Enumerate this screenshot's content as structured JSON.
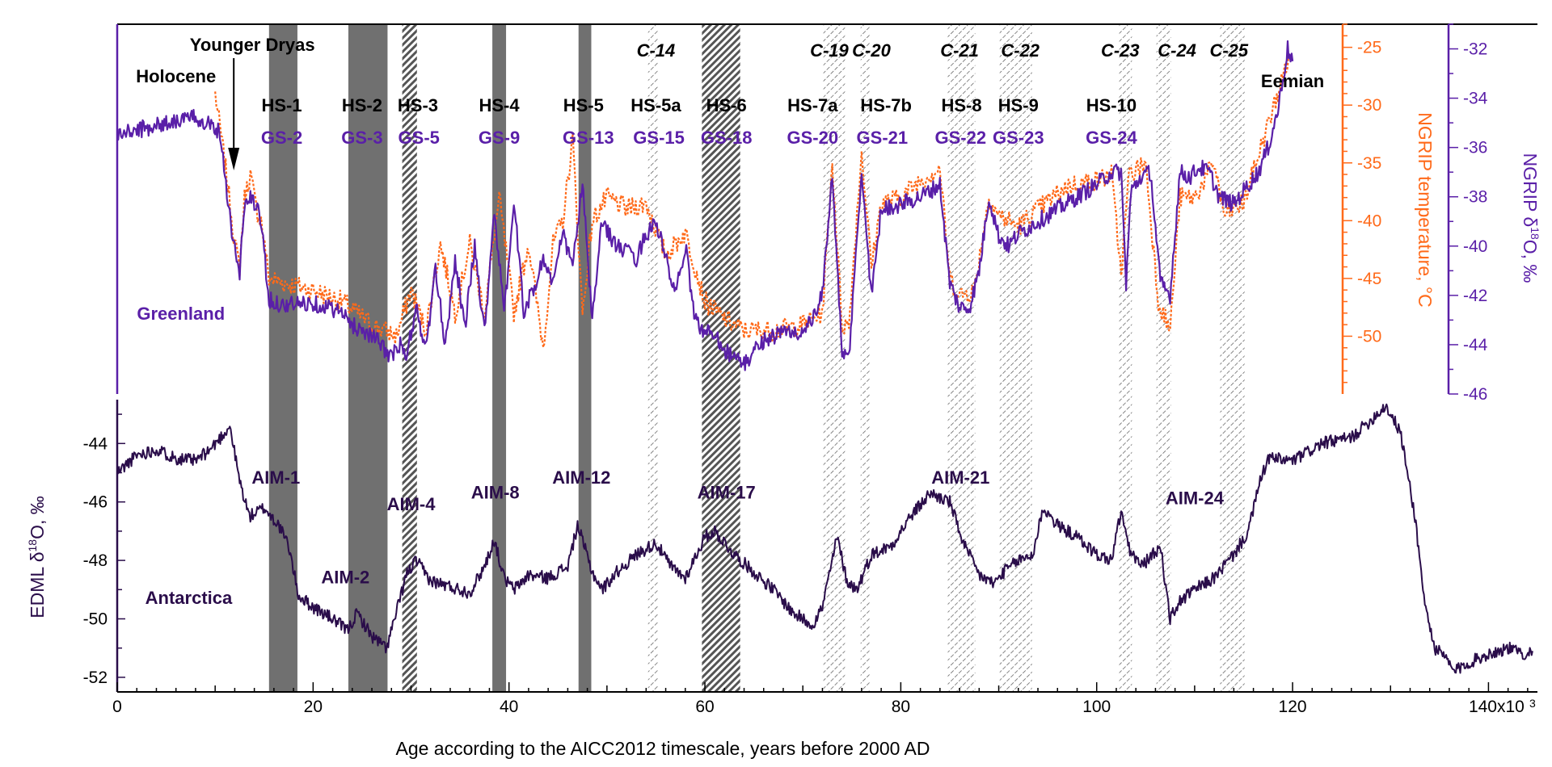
{
  "colors": {
    "greenland_d18o": "#5a1fa8",
    "ngrip_temp": "#ff6a1a",
    "edml": "#2a0d4a",
    "stadial_solid": "#707070",
    "stadial_hatch": "#555555",
    "axis_black": "#000000"
  },
  "chart_data": {
    "type": "line",
    "x_axis": {
      "label": "Age according to the AICC2012 timescale, years before 2000 AD",
      "range": [
        0,
        145000
      ],
      "ticks": [
        0,
        20000,
        40000,
        60000,
        80000,
        100000,
        120000,
        140000
      ],
      "tick_labels": [
        "0",
        "20",
        "40",
        "60",
        "80",
        "100",
        "120",
        "140x10"
      ],
      "multiplier_exponent": "3"
    },
    "axes": {
      "ngrip_d18o": {
        "label": "NGRIP δ¹⁸O, ‰",
        "label_parts": [
          "NGRIP δ",
          "18",
          "O, ‰"
        ],
        "range": [
          -46,
          -31
        ],
        "ticks": [
          -32,
          -34,
          -36,
          -38,
          -40,
          -42,
          -44,
          -46
        ],
        "side": "right-outer"
      },
      "ngrip_temp": {
        "label": "NGRIP temperature, °C",
        "range": [
          -55,
          -23
        ],
        "ticks": [
          -25,
          -30,
          -35,
          -40,
          -45,
          -50
        ],
        "side": "right-inner"
      },
      "edml_d18o": {
        "label": "EDML δ¹⁸O, ‰",
        "label_parts": [
          "EDML δ",
          "18",
          "O, ‰"
        ],
        "range": [
          -52.5,
          -42.5
        ],
        "ticks": [
          -44,
          -46,
          -48,
          -50,
          -52
        ],
        "side": "left"
      }
    },
    "series": [
      {
        "name": "NGRIP δ18O",
        "axis": "ngrip_d18o",
        "x": [
          0,
          2000,
          4000,
          6000,
          8000,
          9500,
          10500,
          11700,
          12500,
          12900,
          13500,
          14200,
          14700,
          15500,
          17000,
          20000,
          22500,
          24000,
          26000,
          28000,
          28900,
          29500,
          30500,
          31500,
          32500,
          33500,
          34500,
          35500,
          36500,
          37500,
          38500,
          39500,
          40500,
          41500,
          42500,
          43500,
          44500,
          45500,
          46500,
          47500,
          48500,
          49500,
          51000,
          53000,
          54000,
          55000,
          56000,
          57000,
          58000,
          59000,
          60000,
          61000,
          62000,
          64000,
          66000,
          68000,
          70000,
          71000,
          72000,
          73000,
          74000,
          74700,
          76000,
          77000,
          78000,
          80000,
          82000,
          84000,
          85000,
          86000,
          87000,
          88000,
          89000,
          90000,
          91000,
          92000,
          94000,
          96000,
          98000,
          100000,
          101500,
          102500,
          103000,
          103500,
          104500,
          105500,
          106500,
          107500,
          108500,
          109500,
          110500,
          111500,
          112500,
          114000,
          115500,
          116500,
          117500,
          118500,
          119500,
          120000
        ],
        "values": [
          -35.5,
          -35.3,
          -35.1,
          -34.9,
          -34.8,
          -35.0,
          -35.4,
          -39.4,
          -41.2,
          -38.6,
          -38.0,
          -38.4,
          -39.0,
          -42.2,
          -42.4,
          -42.3,
          -42.6,
          -43.2,
          -43.6,
          -44.5,
          -44.0,
          -44.6,
          -42.5,
          -44.2,
          -41.0,
          -44.0,
          -40.5,
          -43.3,
          -40.0,
          -43.5,
          -38.5,
          -42.8,
          -38.2,
          -42.6,
          -41.8,
          -40.5,
          -41.5,
          -39.5,
          -40.8,
          -37.5,
          -43.0,
          -39.0,
          -40.0,
          -40.5,
          -39.5,
          -39.0,
          -40.5,
          -42.0,
          -40.0,
          -43.0,
          -43.5,
          -43.5,
          -44.2,
          -44.8,
          -43.8,
          -43.5,
          -43.5,
          -43.0,
          -42.0,
          -37.0,
          -44.5,
          -44.5,
          -37.0,
          -42.0,
          -38.5,
          -38.3,
          -38.0,
          -37.5,
          -41.5,
          -42.5,
          -42.5,
          -41.0,
          -38.0,
          -39.6,
          -40.0,
          -39.5,
          -39.0,
          -38.5,
          -38.0,
          -37.5,
          -37.0,
          -37.0,
          -41.5,
          -37.8,
          -37.2,
          -37.0,
          -41.5,
          -42.0,
          -37.0,
          -37.2,
          -36.8,
          -37.0,
          -38.0,
          -38.3,
          -37.5,
          -37.0,
          -36.0,
          -34.5,
          -32.0,
          -32.5
        ]
      },
      {
        "name": "NGRIP temperature",
        "axis": "ngrip_temp",
        "x": [
          10000,
          10500,
          11300,
          12000,
          12500,
          13000,
          13600,
          14200,
          14700,
          15500,
          17500,
          20000,
          23000,
          26000,
          28500,
          30000,
          31500,
          33000,
          34500,
          36000,
          37500,
          39000,
          40500,
          42000,
          43500,
          44500,
          45500,
          46500,
          47500,
          48500,
          50000,
          52000,
          54000,
          56000,
          58000,
          60000,
          62000,
          64000,
          67000,
          70000,
          72000,
          73000,
          74000,
          74700,
          76000,
          77000,
          78000,
          80000,
          82000,
          84000,
          85000,
          86000,
          87500,
          89000,
          90000,
          92000,
          94000,
          97000,
          100000,
          101500,
          102500,
          103300,
          105000,
          106300,
          107500,
          108500,
          110000,
          112000,
          113000,
          115000,
          117000,
          118500,
          119700
        ],
        "values": [
          -29.0,
          -32.0,
          -37.0,
          -42.0,
          -44.0,
          -38.0,
          -36.0,
          -39.0,
          -40.0,
          -45.0,
          -45.5,
          -46.0,
          -47.0,
          -49.0,
          -50.0,
          -46.0,
          -49.5,
          -42.0,
          -48.0,
          -42.0,
          -48.0,
          -38.0,
          -48.0,
          -42.0,
          -51.0,
          -42.0,
          -40.0,
          -33.0,
          -48.0,
          -40.0,
          -38.0,
          -39.0,
          -38.5,
          -43.0,
          -41.0,
          -47.0,
          -48.5,
          -49.5,
          -49.5,
          -49.0,
          -48.0,
          -35.0,
          -49.0,
          -49.0,
          -34.0,
          -44.0,
          -38.5,
          -38.0,
          -36.5,
          -35.5,
          -45.0,
          -46.5,
          -46.0,
          -38.0,
          -39.5,
          -40.5,
          -39.0,
          -37.0,
          -36.5,
          -36.0,
          -44.5,
          -36.0,
          -35.0,
          -47.0,
          -49.5,
          -38.0,
          -38.0,
          -35.0,
          -39.5,
          -38.5,
          -33.0,
          -29.0,
          -25.5
        ]
      },
      {
        "name": "EDML δ18O",
        "axis": "edml_d18o",
        "x": [
          0,
          2000,
          4000,
          6000,
          8000,
          9500,
          10800,
          11500,
          12500,
          13500,
          15000,
          16500,
          17500,
          18500,
          20000,
          22000,
          23500,
          24500,
          26000,
          27500,
          28500,
          29500,
          30500,
          32000,
          34000,
          36000,
          37500,
          38500,
          39500,
          40500,
          42000,
          44000,
          46000,
          47000,
          48500,
          49500,
          51000,
          53000,
          55000,
          56500,
          58000,
          60000,
          61000,
          63000,
          65000,
          67000,
          69000,
          71000,
          72000,
          73500,
          74500,
          75500,
          77000,
          79000,
          81000,
          83000,
          85000,
          86500,
          88000,
          89500,
          90500,
          92000,
          93500,
          94500,
          96000,
          98000,
          100000,
          101500,
          102500,
          103300,
          104500,
          105500,
          106500,
          107500,
          108500,
          110000,
          112000,
          114000,
          115500,
          116500,
          117500,
          120000,
          123000,
          126000,
          128000,
          129500,
          131000,
          132500,
          133500,
          134500,
          135500,
          136500,
          138000,
          140000,
          142000,
          143500,
          144500
        ],
        "values": [
          -45.0,
          -44.4,
          -44.2,
          -44.5,
          -44.6,
          -44.2,
          -43.7,
          -43.4,
          -45.3,
          -46.5,
          -46.2,
          -46.8,
          -47.5,
          -49.2,
          -49.6,
          -50.0,
          -50.4,
          -49.8,
          -50.6,
          -51.0,
          -49.8,
          -48.5,
          -48.0,
          -48.7,
          -48.9,
          -49.1,
          -48.2,
          -47.3,
          -48.6,
          -49.0,
          -48.5,
          -48.6,
          -48.2,
          -46.8,
          -48.4,
          -49.0,
          -48.4,
          -47.8,
          -47.4,
          -48.2,
          -48.6,
          -47.2,
          -47.0,
          -47.8,
          -48.4,
          -49.0,
          -49.8,
          -50.2,
          -49.6,
          -47.2,
          -48.7,
          -49.0,
          -47.8,
          -47.5,
          -46.5,
          -45.7,
          -46.0,
          -47.5,
          -48.5,
          -48.8,
          -48.4,
          -48.0,
          -47.8,
          -46.2,
          -46.8,
          -47.2,
          -47.8,
          -48.0,
          -46.3,
          -47.6,
          -48.2,
          -47.9,
          -47.5,
          -50.0,
          -49.4,
          -49.0,
          -48.6,
          -47.8,
          -47.0,
          -45.5,
          -44.5,
          -44.6,
          -44.0,
          -43.8,
          -43.2,
          -42.7,
          -43.6,
          -46.5,
          -49.5,
          -51.0,
          -51.3,
          -51.8,
          -51.5,
          -51.2,
          -51.0,
          -51.2,
          -51.1
        ]
      }
    ],
    "stadial_bands": [
      {
        "start": 15500,
        "end": 18400,
        "style": "solid"
      },
      {
        "start": 23600,
        "end": 27600,
        "style": "solid"
      },
      {
        "start": 29100,
        "end": 30600,
        "style": "hatch"
      },
      {
        "start": 38300,
        "end": 39700,
        "style": "solid"
      },
      {
        "start": 47100,
        "end": 48400,
        "style": "solid"
      },
      {
        "start": 54200,
        "end": 55200,
        "style": "dash"
      },
      {
        "start": 59700,
        "end": 63600,
        "style": "hatch"
      },
      {
        "start": 72100,
        "end": 74300,
        "style": "dash"
      },
      {
        "start": 75900,
        "end": 76800,
        "style": "dash"
      },
      {
        "start": 84800,
        "end": 87600,
        "style": "dash"
      },
      {
        "start": 90100,
        "end": 93400,
        "style": "dash"
      },
      {
        "start": 102300,
        "end": 103600,
        "style": "dash"
      },
      {
        "start": 106100,
        "end": 107600,
        "style": "dash"
      },
      {
        "start": 112600,
        "end": 115100,
        "style": "dash"
      }
    ],
    "annotations": {
      "regions": [
        {
          "text": "Holocene",
          "x": 6000,
          "row": "holocene"
        },
        {
          "text": "Younger Dryas",
          "x": 13800,
          "row": "yd"
        },
        {
          "text": "Eemian",
          "x": 120000,
          "row": "eemian"
        },
        {
          "text": "Greenland",
          "x": 6500,
          "row": "greenland"
        },
        {
          "text": "Antarctica",
          "x": 7300,
          "row": "antarctica"
        }
      ],
      "cold_events": [
        "C-14",
        "C-19",
        "C-20",
        "C-21",
        "C-22",
        "C-23",
        "C-24",
        "C-25"
      ],
      "cold_events_x": [
        55000,
        72700,
        77000,
        86000,
        92200,
        102400,
        108200,
        113500
      ],
      "heinrich": [
        "HS-1",
        "HS-2",
        "HS-3",
        "HS-4",
        "HS-5",
        "HS-5a",
        "HS-6",
        "HS-7a",
        "HS-7b",
        "HS-8",
        "HS-9",
        "HS-10"
      ],
      "heinrich_x": [
        16800,
        25000,
        30700,
        39000,
        47600,
        55000,
        62200,
        71000,
        78500,
        86200,
        92000,
        101500
      ],
      "greenland_stadials": [
        "GS-2",
        "GS-3",
        "GS-5",
        "GS-9",
        "GS-13",
        "GS-15",
        "GS-18",
        "GS-20",
        "GS-21",
        "GS-22",
        "GS-23",
        "GS-24"
      ],
      "greenland_stadials_x": [
        16800,
        25000,
        30800,
        39000,
        48100,
        55300,
        62200,
        71000,
        78100,
        86100,
        92000,
        101500
      ],
      "aim": [
        "AIM-1",
        "AIM-2",
        "AIM-4",
        "AIM-8",
        "AIM-12",
        "AIM-17",
        "AIM-21",
        "AIM-24"
      ],
      "aim_x": [
        16200,
        23300,
        30000,
        38600,
        47400,
        62200,
        86100,
        110000
      ],
      "aim_val": [
        -45.6,
        -49.0,
        -46.5,
        -46.1,
        -45.6,
        -46.1,
        -45.6,
        -46.3
      ]
    }
  }
}
